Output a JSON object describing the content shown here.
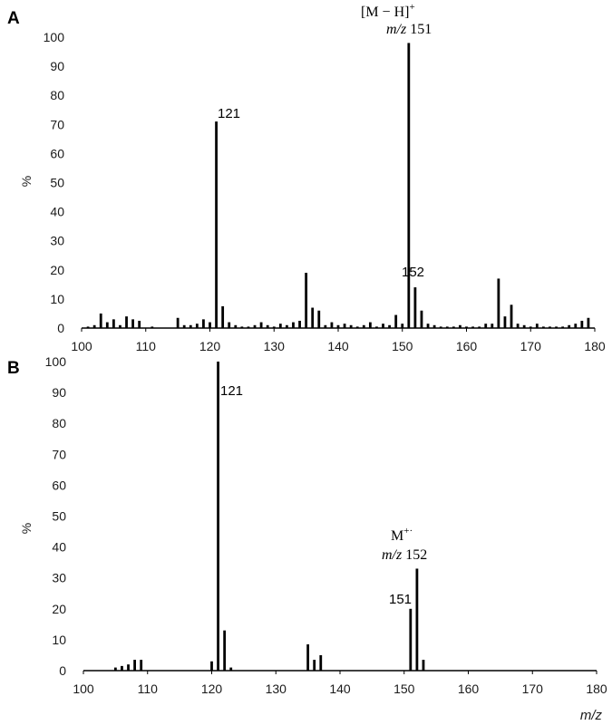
{
  "chart_data": [
    {
      "type": "bar",
      "panel": "A",
      "xlim": [
        100,
        180
      ],
      "ylim": [
        0,
        100
      ],
      "xticks": [
        "100",
        "110",
        "120",
        "130",
        "140",
        "150",
        "160",
        "170",
        "180"
      ],
      "yticks": [
        "0",
        "10",
        "20",
        "30",
        "40",
        "50",
        "60",
        "70",
        "80",
        "90",
        "100"
      ],
      "ylabel": "%",
      "xlabel": "",
      "peaks": [
        [
          101,
          0.5
        ],
        [
          102,
          1
        ],
        [
          103,
          5
        ],
        [
          104,
          2
        ],
        [
          105,
          3
        ],
        [
          106,
          1
        ],
        [
          107,
          4
        ],
        [
          108,
          3
        ],
        [
          109,
          2.5
        ],
        [
          111,
          0.5
        ],
        [
          115,
          3.5
        ],
        [
          116,
          1
        ],
        [
          117,
          1
        ],
        [
          118,
          1.5
        ],
        [
          119,
          3
        ],
        [
          120,
          2
        ],
        [
          121,
          71
        ],
        [
          122,
          7.5
        ],
        [
          123,
          2
        ],
        [
          124,
          1
        ],
        [
          125,
          0.5
        ],
        [
          126,
          0.5
        ],
        [
          127,
          1
        ],
        [
          128,
          2
        ],
        [
          129,
          1
        ],
        [
          130,
          0.5
        ],
        [
          131,
          1.5
        ],
        [
          132,
          1
        ],
        [
          133,
          2
        ],
        [
          134,
          2.5
        ],
        [
          135,
          19
        ],
        [
          136,
          7
        ],
        [
          137,
          6
        ],
        [
          138,
          1
        ],
        [
          139,
          2
        ],
        [
          140,
          1
        ],
        [
          141,
          1.5
        ],
        [
          142,
          1
        ],
        [
          143,
          0.5
        ],
        [
          144,
          1
        ],
        [
          145,
          2
        ],
        [
          146,
          0.5
        ],
        [
          147,
          1.5
        ],
        [
          148,
          1
        ],
        [
          149,
          4.5
        ],
        [
          150,
          1.5
        ],
        [
          151,
          98
        ],
        [
          152,
          14
        ],
        [
          153,
          6
        ],
        [
          154,
          1.5
        ],
        [
          155,
          1
        ],
        [
          156,
          0.5
        ],
        [
          157,
          0.5
        ],
        [
          158,
          0.5
        ],
        [
          159,
          1
        ],
        [
          160,
          0.5
        ],
        [
          161,
          0.5
        ],
        [
          162,
          0.5
        ],
        [
          163,
          1.5
        ],
        [
          164,
          1.5
        ],
        [
          165,
          17
        ],
        [
          166,
          4
        ],
        [
          167,
          8
        ],
        [
          168,
          1.5
        ],
        [
          169,
          1
        ],
        [
          170,
          0.5
        ],
        [
          171,
          1.5
        ],
        [
          172,
          0.5
        ],
        [
          173,
          0.5
        ],
        [
          174,
          0.5
        ],
        [
          175,
          0.5
        ],
        [
          176,
          1
        ],
        [
          177,
          1.5
        ],
        [
          178,
          2.5
        ],
        [
          179,
          3.5
        ]
      ],
      "annotations": {
        "peak_121": "121",
        "peak_152": "152",
        "ion_label": "[M − H]",
        "ion_charge": "+",
        "mz_prefix": "m/z",
        "mz_value": "151"
      }
    },
    {
      "type": "bar",
      "panel": "B",
      "xlim": [
        100,
        180
      ],
      "ylim": [
        0,
        100
      ],
      "xticks": [
        "100",
        "110",
        "120",
        "130",
        "140",
        "150",
        "160",
        "170",
        "180"
      ],
      "yticks": [
        "0",
        "10",
        "20",
        "30",
        "40",
        "50",
        "60",
        "70",
        "80",
        "90",
        "100"
      ],
      "ylabel": "%",
      "xlabel": "m/z",
      "peaks": [
        [
          105,
          1
        ],
        [
          106,
          1.5
        ],
        [
          107,
          2
        ],
        [
          108,
          3.5
        ],
        [
          109,
          3.5
        ],
        [
          120,
          3
        ],
        [
          121,
          100
        ],
        [
          122,
          13
        ],
        [
          123,
          1
        ],
        [
          135,
          8.5
        ],
        [
          136,
          3.5
        ],
        [
          137,
          5
        ],
        [
          151,
          20
        ],
        [
          152,
          33
        ],
        [
          153,
          3.5
        ]
      ],
      "annotations": {
        "peak_121": "121",
        "peak_151": "151",
        "ion_label": "M",
        "ion_charge": "+·",
        "mz_prefix": "m/z",
        "mz_value": "152"
      }
    }
  ],
  "panel_letters": [
    "A",
    "B"
  ]
}
